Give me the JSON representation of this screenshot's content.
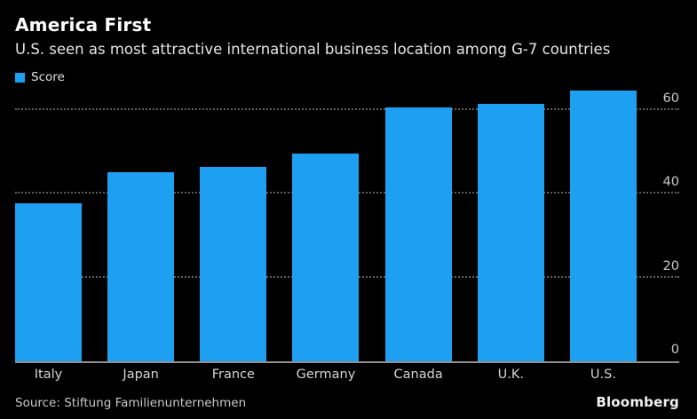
{
  "header": {
    "title": "America First",
    "subtitle": "U.S. seen as most attractive international business location among G-7 countries"
  },
  "legend": {
    "label": "Score",
    "swatch_color": "#1da0f2"
  },
  "chart_data": {
    "type": "bar",
    "title": "America First",
    "subtitle": "U.S. seen as most attractive international business location among G-7 countries",
    "series_name": "Score",
    "categories": [
      "Italy",
      "Japan",
      "France",
      "Germany",
      "Canada",
      "U.K.",
      "U.S."
    ],
    "values": [
      37.8,
      45.1,
      46.4,
      49.6,
      60.6,
      61.5,
      64.6
    ],
    "xlabel": "",
    "ylabel": "",
    "yticks": [
      0,
      20,
      40,
      60
    ],
    "ylim": [
      0,
      65.7
    ],
    "axis_side": "right",
    "grid": "horizontal-dotted",
    "legend_position": "top-left",
    "bar_color": "#1da0f2",
    "background_color": "#000000"
  },
  "footer": {
    "source": "Source: Stiftung Familienunternehmen",
    "brand": "Bloomberg"
  }
}
